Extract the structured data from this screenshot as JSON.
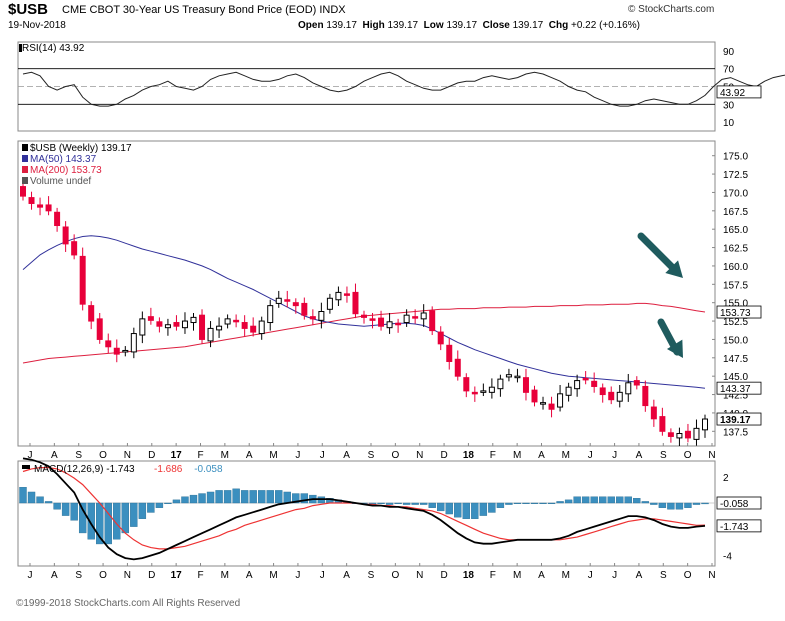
{
  "header": {
    "symbol": "$USB",
    "name": "CME CBOT 30-Year US Treasury Bond Price (EOD) INDX",
    "brand": "© StockCharts.com",
    "date": "19-Nov-2018",
    "open_label": "Open",
    "open": "139.17",
    "high_label": "High",
    "high": "139.17",
    "low_label": "Low",
    "low": "139.17",
    "close_label": "Close",
    "close": "139.17",
    "chg_label": "Chg",
    "chg": "+0.22 (+0.16%)"
  },
  "footer": {
    "copyright": "©1999-2018 StockCharts.com All Rights Reserved"
  },
  "colors": {
    "up": "#000000",
    "down": "#e8003a",
    "ma50": "#31319a",
    "ma200": "#dd1f3f",
    "macd": "#000000",
    "signal": "#ee3333",
    "histogram": "#3b8fbf"
  },
  "icons": {
    "close_marker": "black-filled-square",
    "volume": "bar-icon"
  },
  "chart_data": [
    {
      "type": "line",
      "name": "rsi-panel",
      "legend": "RSI(14) 43.92",
      "ylim": [
        0,
        100
      ],
      "y_ticks": [
        "90",
        "70",
        "50",
        "30",
        "10"
      ],
      "reference_lines": [
        70,
        30
      ],
      "last_value_label": "43.92",
      "values": [
        64,
        66,
        62,
        50,
        46,
        50,
        52,
        38,
        30,
        28,
        28,
        30,
        36,
        40,
        46,
        50,
        52,
        56,
        50,
        48,
        46,
        50,
        58,
        62,
        64,
        66,
        62,
        58,
        56,
        56,
        58,
        62,
        64,
        60,
        54,
        50,
        46,
        44,
        46,
        50,
        56,
        60,
        64,
        66,
        62,
        56,
        52,
        48,
        46,
        46,
        50,
        54,
        56,
        56,
        60,
        62,
        60,
        58,
        60,
        64,
        66,
        64,
        60,
        56,
        50,
        46,
        44,
        38,
        34,
        30,
        28,
        28,
        30,
        34,
        36,
        34,
        32,
        30,
        30,
        34,
        40,
        50,
        58,
        60,
        56,
        52,
        50,
        56,
        60,
        62,
        64,
        66,
        64,
        60,
        56,
        54,
        50,
        46,
        40,
        36,
        34,
        36,
        40,
        42,
        44
      ]
    },
    {
      "type": "candlestick",
      "name": "price-panel",
      "legend": [
        {
          "label": "$USB (Weekly) 139.17",
          "color": "#000000"
        },
        {
          "label": "MA(50) 143.37",
          "color": "#31319a"
        },
        {
          "label": "MA(200) 153.73",
          "color": "#dd1f3f"
        },
        {
          "label": "Volume undef",
          "color": "#555555"
        }
      ],
      "ylim": [
        135.5,
        177.0
      ],
      "y_ticks": [
        "175.0",
        "172.5",
        "170.0",
        "167.5",
        "165.0",
        "162.5",
        "160.0",
        "157.5",
        "155.0",
        "152.5",
        "150.0",
        "147.5",
        "145.0",
        "142.5",
        "140.0",
        "137.5"
      ],
      "x_ticks": [
        "J",
        "A",
        "S",
        "O",
        "N",
        "D",
        "17",
        "F",
        "M",
        "A",
        "M",
        "J",
        "J",
        "A",
        "S",
        "O",
        "N",
        "D",
        "18",
        "F",
        "M",
        "A",
        "M",
        "J",
        "J",
        "A",
        "S",
        "O",
        "N"
      ],
      "value_labels": {
        "ma200": "153.73",
        "ma50": "143.37",
        "close": "139.17"
      },
      "close": [
        169.5,
        168.5,
        168.0,
        167.5,
        165.5,
        163.0,
        161.5,
        154.8,
        152.5,
        150.0,
        149.0,
        148.0,
        148.5,
        150.8,
        152.8,
        152.6,
        151.8,
        152.0,
        151.8,
        152.5,
        153.0,
        150.0,
        151.5,
        151.8,
        152.8,
        152.5,
        151.5,
        151.0,
        152.5,
        154.6,
        155.6,
        155.2,
        154.6,
        153.3,
        152.8,
        153.8,
        155.6,
        156.4,
        156.1,
        153.5,
        153.0,
        152.6,
        151.8,
        152.4,
        152.0,
        153.3,
        153.0,
        153.6,
        151.2,
        149.4,
        147.0,
        145.0,
        143.0,
        142.6,
        143.0,
        143.5,
        144.6,
        145.2,
        145.0,
        142.8,
        141.5,
        141.4,
        140.5,
        142.6,
        143.5,
        144.4,
        144.5,
        143.6,
        142.5,
        141.8,
        142.8,
        144.1,
        143.8,
        141.0,
        139.2,
        137.5,
        136.8,
        137.2,
        136.6,
        137.9,
        139.17
      ],
      "opens_first": 170.8,
      "ma50": [
        159.5,
        160.5,
        161.5,
        162.2,
        162.8,
        163.3,
        163.7,
        164.0,
        164.1,
        164.0,
        163.8,
        163.5,
        163.1,
        162.7,
        162.3,
        162.0,
        161.7,
        161.4,
        161.1,
        160.8,
        160.4,
        160.0,
        159.5,
        158.9,
        158.3,
        157.8,
        157.3,
        156.8,
        156.2,
        155.6,
        155.0,
        154.4,
        153.8,
        153.2,
        152.8,
        152.5,
        152.3,
        152.1,
        152.0,
        151.9,
        151.8,
        151.9,
        152.0,
        152.1,
        152.2,
        152.2,
        152.1,
        151.9,
        151.4,
        150.8,
        150.2,
        149.6,
        149.1,
        148.6,
        148.2,
        147.8,
        147.4,
        147.0,
        146.6,
        146.3,
        146.0,
        145.7,
        145.4,
        145.2,
        145.0,
        144.9,
        144.8,
        144.7,
        144.6,
        144.5,
        144.4,
        144.3,
        144.2,
        144.1,
        144.0,
        143.9,
        143.8,
        143.7,
        143.6,
        143.5,
        143.37
      ],
      "ma200": [
        146.8,
        147.0,
        147.2,
        147.4,
        147.5,
        147.6,
        147.7,
        147.8,
        147.9,
        148.0,
        148.1,
        148.2,
        148.3,
        148.4,
        148.5,
        148.6,
        148.7,
        148.8,
        148.9,
        149.0,
        149.2,
        149.4,
        149.6,
        149.8,
        150.0,
        150.2,
        150.4,
        150.6,
        150.8,
        151.0,
        151.2,
        151.4,
        151.6,
        151.8,
        152.0,
        152.2,
        152.4,
        152.6,
        152.8,
        153.0,
        153.2,
        153.3,
        153.4,
        153.5,
        153.6,
        153.7,
        153.8,
        153.9,
        154.0,
        154.1,
        154.1,
        154.2,
        154.2,
        154.2,
        154.3,
        154.3,
        154.3,
        154.4,
        154.4,
        154.4,
        154.5,
        154.5,
        154.5,
        154.6,
        154.6,
        154.6,
        154.7,
        154.7,
        154.7,
        154.8,
        154.8,
        154.8,
        154.9,
        154.9,
        154.8,
        154.6,
        154.5,
        154.3,
        154.1,
        153.9,
        153.73
      ]
    },
    {
      "type": "area",
      "name": "macd-panel",
      "legend": [
        {
          "label": "MACD(12,26,9) -1.743",
          "color": "#000000"
        },
        {
          "label": "-1.686",
          "color": "#ee3333"
        },
        {
          "label": "-0.058",
          "color": "#3b8fbf"
        }
      ],
      "ylim": [
        -4.8,
        3.2
      ],
      "y_ticks": [
        "2",
        "-4"
      ],
      "value_labels": {
        "histogram": "-0.058",
        "macd": "-1.743"
      },
      "x_ticks": [
        "J",
        "A",
        "S",
        "O",
        "N",
        "D",
        "17",
        "F",
        "M",
        "A",
        "M",
        "J",
        "J",
        "A",
        "S",
        "O",
        "N",
        "D",
        "18",
        "F",
        "M",
        "A",
        "M",
        "J",
        "J",
        "A",
        "S",
        "O",
        "N"
      ],
      "macd": [
        3.4,
        3.3,
        3.1,
        2.8,
        2.2,
        1.5,
        0.8,
        -0.5,
        -1.6,
        -2.6,
        -3.4,
        -3.9,
        -4.2,
        -4.3,
        -4.2,
        -4.0,
        -3.8,
        -3.5,
        -3.2,
        -2.9,
        -2.6,
        -2.3,
        -2.0,
        -1.7,
        -1.4,
        -1.1,
        -0.9,
        -0.7,
        -0.5,
        -0.3,
        -0.1,
        0.0,
        0.1,
        0.2,
        0.3,
        0.3,
        0.3,
        0.2,
        0.1,
        0.0,
        -0.1,
        -0.2,
        -0.2,
        -0.3,
        -0.3,
        -0.4,
        -0.5,
        -0.6,
        -0.9,
        -1.3,
        -1.8,
        -2.3,
        -2.7,
        -3.0,
        -3.1,
        -3.1,
        -3.0,
        -2.9,
        -2.8,
        -2.8,
        -2.8,
        -2.8,
        -2.8,
        -2.7,
        -2.5,
        -2.2,
        -2.0,
        -1.8,
        -1.6,
        -1.4,
        -1.2,
        -1.0,
        -1.0,
        -1.1,
        -1.3,
        -1.6,
        -1.8,
        -1.9,
        -1.9,
        -1.8,
        -1.743
      ],
      "signal": [
        2.4,
        2.6,
        2.7,
        2.7,
        2.6,
        2.3,
        1.9,
        1.4,
        0.7,
        0.0,
        -0.8,
        -1.6,
        -2.3,
        -2.8,
        -3.2,
        -3.4,
        -3.5,
        -3.5,
        -3.4,
        -3.3,
        -3.1,
        -2.9,
        -2.7,
        -2.5,
        -2.2,
        -2.0,
        -1.7,
        -1.5,
        -1.3,
        -1.1,
        -0.9,
        -0.7,
        -0.5,
        -0.4,
        -0.2,
        -0.1,
        0.0,
        0.0,
        0.0,
        0.0,
        -0.1,
        -0.1,
        -0.2,
        -0.2,
        -0.3,
        -0.3,
        -0.4,
        -0.5,
        -0.6,
        -0.8,
        -1.1,
        -1.4,
        -1.7,
        -2.0,
        -2.3,
        -2.5,
        -2.7,
        -2.8,
        -2.8,
        -2.8,
        -2.8,
        -2.8,
        -2.8,
        -2.8,
        -2.7,
        -2.6,
        -2.4,
        -2.2,
        -2.0,
        -1.8,
        -1.6,
        -1.4,
        -1.3,
        -1.2,
        -1.2,
        -1.3,
        -1.4,
        -1.5,
        -1.6,
        -1.7,
        -1.686
      ]
    }
  ]
}
